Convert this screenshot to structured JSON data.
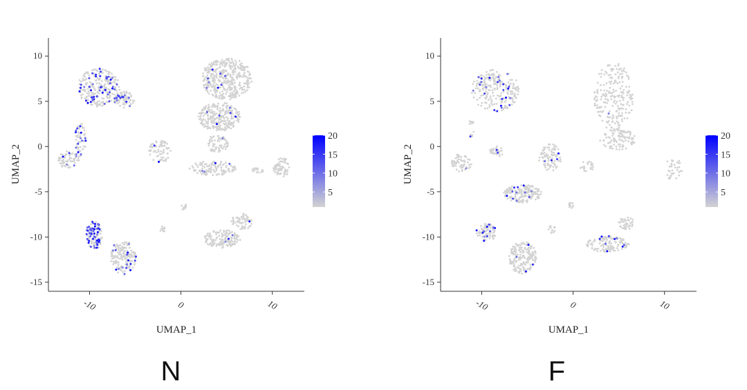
{
  "chart_data": [
    {
      "type": "scatter",
      "panel_label": "N",
      "xlabel": "UMAP_1",
      "ylabel": "UMAP_2",
      "xlim": [
        -14.5,
        13.5
      ],
      "ylim": [
        -16,
        12
      ],
      "xticks": [
        -10,
        0,
        10
      ],
      "yticks": [
        -15,
        -10,
        -5,
        0,
        5,
        10
      ],
      "color_scale": {
        "low": "#d3d3d3",
        "high": "#0000ff",
        "min": 1,
        "max": 20,
        "ticks": [
          5,
          10,
          15,
          20
        ]
      },
      "clusters": [
        {
          "cx": -9.0,
          "cy": 6.5,
          "rx": 2.3,
          "ry": 2.1,
          "n": 260,
          "expr": 0.18
        },
        {
          "cx": -6.2,
          "cy": 5.2,
          "rx": 1.1,
          "ry": 0.9,
          "n": 70,
          "expr": 0.2
        },
        {
          "cx": -11.0,
          "cy": 0.5,
          "rx": 0.6,
          "ry": 2.2,
          "n": 60,
          "expr": 0.25
        },
        {
          "cx": -12.3,
          "cy": -1.5,
          "rx": 1.1,
          "ry": 1.0,
          "n": 60,
          "expr": 0.05
        },
        {
          "cx": 5.0,
          "cy": 7.5,
          "rx": 2.8,
          "ry": 2.3,
          "n": 420,
          "expr": 0.02
        },
        {
          "cx": 4.2,
          "cy": 3.3,
          "rx": 2.3,
          "ry": 1.6,
          "n": 260,
          "expr": 0.02
        },
        {
          "cx": 4.0,
          "cy": 0.3,
          "rx": 1.2,
          "ry": 1.0,
          "n": 70,
          "expr": 0.01
        },
        {
          "cx": -2.2,
          "cy": -0.5,
          "rx": 1.3,
          "ry": 1.3,
          "n": 70,
          "expr": 0.02
        },
        {
          "cx": 3.5,
          "cy": -2.4,
          "rx": 2.6,
          "ry": 0.8,
          "n": 120,
          "expr": 0.02
        },
        {
          "cx": 11.0,
          "cy": -2.3,
          "rx": 0.9,
          "ry": 1.1,
          "n": 70,
          "expr": 0.0
        },
        {
          "cx": 8.5,
          "cy": -2.6,
          "rx": 0.8,
          "ry": 0.3,
          "n": 15,
          "expr": 0.0
        },
        {
          "cx": -9.5,
          "cy": -9.8,
          "rx": 0.9,
          "ry": 1.6,
          "n": 110,
          "expr": 0.45
        },
        {
          "cx": -6.3,
          "cy": -12.2,
          "rx": 1.4,
          "ry": 1.9,
          "n": 170,
          "expr": 0.12
        },
        {
          "cx": 4.5,
          "cy": -10.2,
          "rx": 2.0,
          "ry": 1.0,
          "n": 150,
          "expr": 0.02
        },
        {
          "cx": 6.7,
          "cy": -8.3,
          "rx": 1.2,
          "ry": 0.9,
          "n": 60,
          "expr": 0.03
        },
        {
          "cx": -2.0,
          "cy": -9.2,
          "rx": 0.3,
          "ry": 0.4,
          "n": 10,
          "expr": 0.0
        },
        {
          "cx": 0.3,
          "cy": -6.7,
          "rx": 0.5,
          "ry": 0.3,
          "n": 10,
          "expr": 0.0
        }
      ]
    },
    {
      "type": "scatter",
      "panel_label": "F",
      "xlabel": "UMAP_1",
      "ylabel": "UMAP_2",
      "xlim": [
        -14.5,
        13.5
      ],
      "ylim": [
        -16,
        12
      ],
      "xticks": [
        -10,
        0,
        10
      ],
      "yticks": [
        -15,
        -10,
        -5,
        0,
        5,
        10
      ],
      "color_scale": {
        "low": "#d3d3d3",
        "high": "#0000ff",
        "min": 1,
        "max": 20,
        "ticks": [
          5,
          10,
          15,
          20
        ]
      },
      "clusters": [
        {
          "cx": -8.5,
          "cy": 6.2,
          "rx": 2.6,
          "ry": 2.3,
          "n": 240,
          "expr": 0.08
        },
        {
          "cx": -11.2,
          "cy": 2.0,
          "rx": 0.4,
          "ry": 1.0,
          "n": 15,
          "expr": 0.2
        },
        {
          "cx": -12.2,
          "cy": -1.8,
          "rx": 1.1,
          "ry": 1.0,
          "n": 60,
          "expr": 0.02
        },
        {
          "cx": 4.5,
          "cy": 5.5,
          "rx": 2.2,
          "ry": 3.8,
          "n": 220,
          "expr": 0.01
        },
        {
          "cx": 4.8,
          "cy": 0.8,
          "rx": 2.0,
          "ry": 1.2,
          "n": 100,
          "expr": 0.01
        },
        {
          "cx": -2.5,
          "cy": -1.2,
          "rx": 1.3,
          "ry": 1.5,
          "n": 90,
          "expr": 0.03
        },
        {
          "cx": -8.3,
          "cy": -0.5,
          "rx": 0.8,
          "ry": 0.6,
          "n": 30,
          "expr": 0.05
        },
        {
          "cx": 11.0,
          "cy": -2.5,
          "rx": 1.0,
          "ry": 1.2,
          "n": 35,
          "expr": 0.0
        },
        {
          "cx": 1.5,
          "cy": -2.2,
          "rx": 0.8,
          "ry": 0.6,
          "n": 20,
          "expr": 0.0
        },
        {
          "cx": -5.5,
          "cy": -5.2,
          "rx": 2.1,
          "ry": 1.0,
          "n": 180,
          "expr": 0.08
        },
        {
          "cx": -9.5,
          "cy": -9.5,
          "rx": 1.1,
          "ry": 1.0,
          "n": 80,
          "expr": 0.18
        },
        {
          "cx": -5.5,
          "cy": -12.3,
          "rx": 1.5,
          "ry": 1.8,
          "n": 190,
          "expr": 0.03
        },
        {
          "cx": 3.8,
          "cy": -10.8,
          "rx": 2.3,
          "ry": 0.9,
          "n": 130,
          "expr": 0.08
        },
        {
          "cx": 5.8,
          "cy": -8.5,
          "rx": 0.9,
          "ry": 0.8,
          "n": 40,
          "expr": 0.02
        },
        {
          "cx": -0.2,
          "cy": -6.5,
          "rx": 0.3,
          "ry": 0.4,
          "n": 12,
          "expr": 0.0
        },
        {
          "cx": -2.3,
          "cy": -9.2,
          "rx": 0.4,
          "ry": 0.5,
          "n": 12,
          "expr": 0.0
        }
      ]
    }
  ]
}
